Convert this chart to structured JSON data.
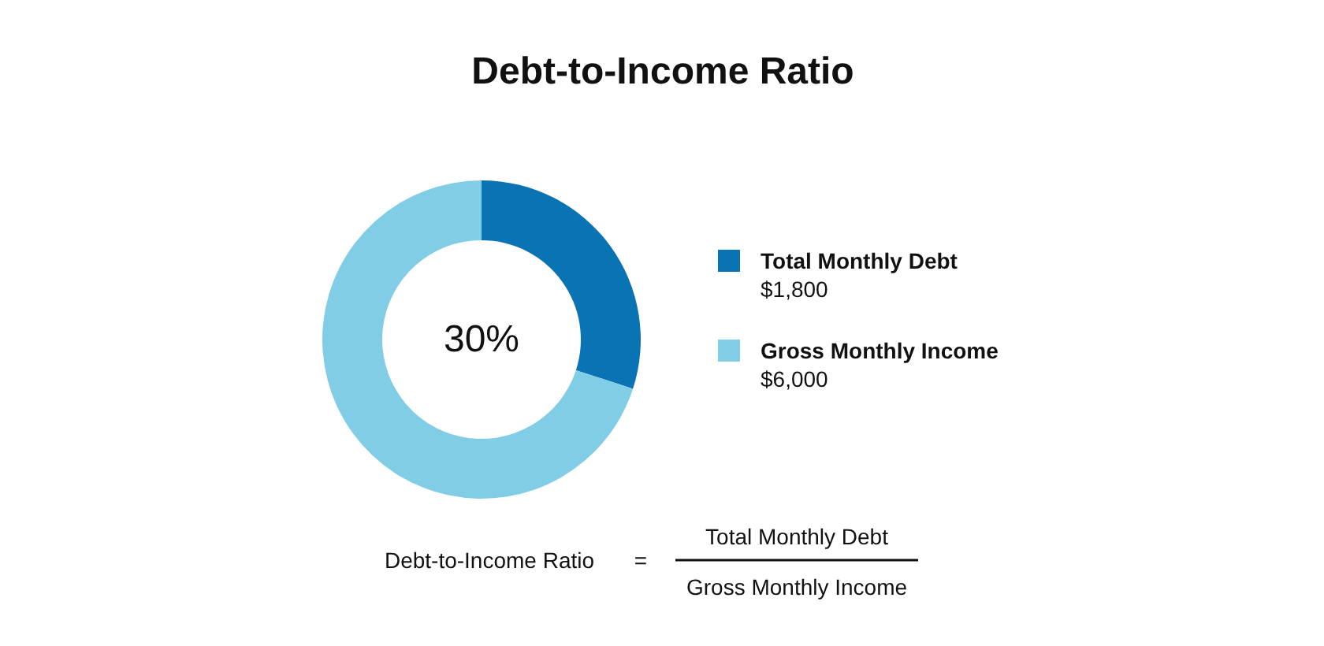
{
  "chart_data": {
    "type": "donut",
    "title": "Debt-to-Income Ratio",
    "categories": [
      "Total Monthly Debt",
      "Gross Monthly Income"
    ],
    "values": [
      30,
      70
    ],
    "colors": [
      "#0a73b3",
      "#82cde6"
    ],
    "legend": "right",
    "annotations": [
      "30%",
      "$1,800",
      "$6,000",
      "Debt-to-Income Ratio",
      "=",
      "Total Monthly Debt",
      "Gross Monthly Income"
    ]
  }
}
